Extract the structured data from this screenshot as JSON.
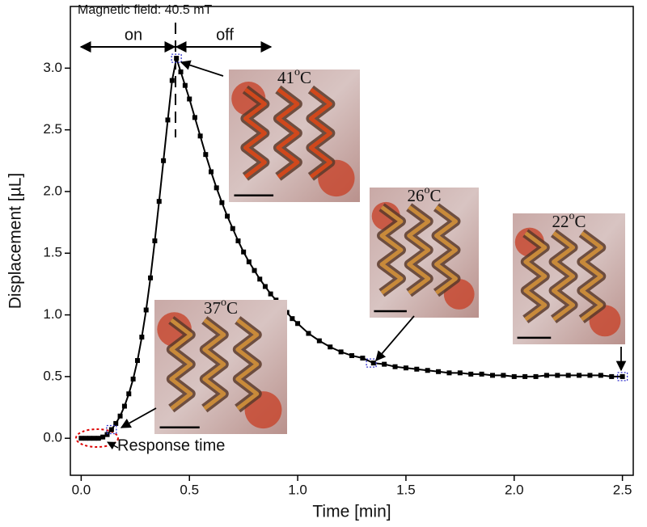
{
  "chart_data": {
    "type": "scatter",
    "title": "Magnetic field: 40.5 mT",
    "x_label": "Time [min]",
    "y_label": "Displacement [µL]",
    "annotations": {
      "on": "on",
      "off": "off",
      "response": "Response time"
    },
    "xlim": [
      -0.05,
      2.55
    ],
    "ylim": [
      -0.3,
      3.5
    ],
    "xticks": [
      {
        "value": 0,
        "label": "0.0"
      },
      {
        "value": 0.5,
        "label": "0.5"
      },
      {
        "value": 1,
        "label": "1.0"
      },
      {
        "value": 1.5,
        "label": "1.5"
      },
      {
        "value": 2,
        "label": "2.0"
      },
      {
        "value": 2.5,
        "label": "2.5"
      }
    ],
    "yticks": [
      {
        "value": 0,
        "label": "0.0"
      },
      {
        "value": 0.5,
        "label": "0.5"
      },
      {
        "value": 1,
        "label": "1.0"
      },
      {
        "value": 1.5,
        "label": "1.5"
      },
      {
        "value": 2,
        "label": "2.0"
      },
      {
        "value": 2.5,
        "label": "2.5"
      },
      {
        "value": 3,
        "label": "3.0"
      }
    ],
    "color": "#000000",
    "x": [
      0,
      0.02,
      0.04,
      0.06,
      0.08,
      0.1,
      0.12,
      0.14,
      0.16,
      0.18,
      0.2,
      0.22,
      0.24,
      0.26,
      0.28,
      0.3,
      0.32,
      0.34,
      0.36,
      0.38,
      0.4,
      0.42,
      0.44,
      0.46,
      0.48,
      0.5,
      0.525,
      0.55,
      0.575,
      0.6,
      0.625,
      0.65,
      0.675,
      0.7,
      0.725,
      0.75,
      0.775,
      0.8,
      0.825,
      0.85,
      0.875,
      0.9,
      0.925,
      0.95,
      0.975,
      1.0,
      1.05,
      1.1,
      1.15,
      1.2,
      1.25,
      1.3,
      1.35,
      1.4,
      1.45,
      1.5,
      1.55,
      1.6,
      1.65,
      1.7,
      1.75,
      1.8,
      1.85,
      1.9,
      1.95,
      2.0,
      2.05,
      2.1,
      2.15,
      2.2,
      2.25,
      2.3,
      2.35,
      2.4,
      2.45,
      2.5
    ],
    "values": [
      0,
      0,
      0,
      0,
      0,
      0.01,
      0.03,
      0.07,
      0.12,
      0.18,
      0.26,
      0.36,
      0.48,
      0.63,
      0.82,
      1.04,
      1.3,
      1.6,
      1.92,
      2.25,
      2.58,
      2.9,
      3.08,
      2.97,
      2.86,
      2.75,
      2.6,
      2.45,
      2.3,
      2.16,
      2.03,
      1.91,
      1.8,
      1.7,
      1.6,
      1.51,
      1.43,
      1.36,
      1.29,
      1.23,
      1.17,
      1.12,
      1.07,
      1.02,
      0.97,
      0.93,
      0.85,
      0.79,
      0.74,
      0.7,
      0.67,
      0.65,
      0.61,
      0.6,
      0.58,
      0.57,
      0.56,
      0.55,
      0.54,
      0.53,
      0.53,
      0.52,
      0.52,
      0.51,
      0.51,
      0.5,
      0.5,
      0.5,
      0.51,
      0.51,
      0.51,
      0.51,
      0.51,
      0.51,
      0.5,
      0.5
    ],
    "insets": [
      {
        "label": [
          "41",
          "o",
          "C"
        ],
        "point": [
          0.44,
          3.08
        ]
      },
      {
        "label": [
          "26",
          "o",
          "C"
        ],
        "point": [
          1.34,
          0.61
        ]
      },
      {
        "label": [
          "22",
          "o",
          "C"
        ],
        "point": [
          2.5,
          0.5
        ]
      },
      {
        "label": [
          "37",
          "o",
          "C"
        ],
        "point": [
          0.14,
          0.07
        ]
      }
    ]
  }
}
